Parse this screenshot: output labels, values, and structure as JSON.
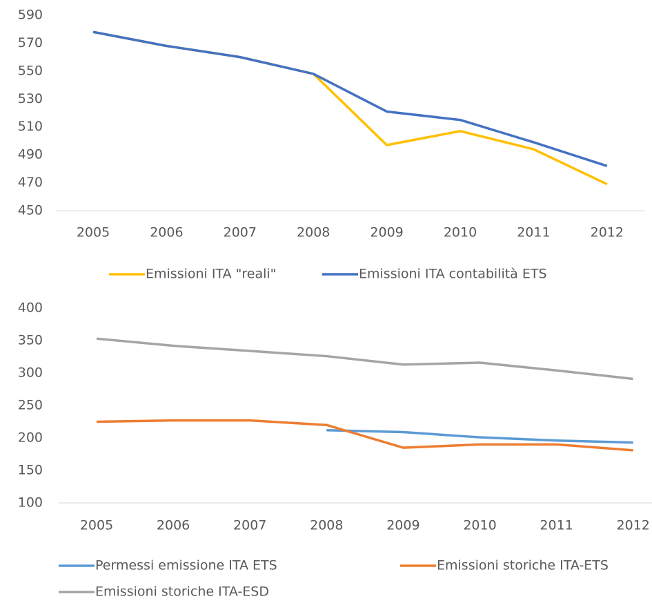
{
  "chart_data": [
    {
      "type": "line",
      "categories": [
        "2005",
        "2006",
        "2007",
        "2008",
        "2009",
        "2010",
        "2011",
        "2012"
      ],
      "series": [
        {
          "name": "Emissioni ITA \"reali\"",
          "color": "#ffc000",
          "values": [
            578,
            568,
            560,
            548,
            497,
            507,
            494,
            469
          ]
        },
        {
          "name": "Emissioni ITA contabilità ETS",
          "color": "#4472c4",
          "values": [
            578,
            568,
            560,
            548,
            521,
            515,
            499,
            482
          ]
        }
      ],
      "ylim": [
        450,
        590
      ],
      "yticks": [
        450,
        470,
        490,
        510,
        530,
        550,
        570,
        590
      ],
      "grid": false,
      "legend": "bottom"
    },
    {
      "type": "line",
      "categories": [
        "2005",
        "2006",
        "2007",
        "2008",
        "2009",
        "2010",
        "2011",
        "2012"
      ],
      "series": [
        {
          "name": "Permessi emissione ITA ETS",
          "color": "#5b9bd5",
          "values": [
            null,
            null,
            null,
            212,
            209,
            201,
            196,
            193
          ]
        },
        {
          "name": "Emissioni storiche ITA-ETS",
          "color": "#ed7d31",
          "values": [
            225,
            227,
            227,
            220,
            185,
            190,
            190,
            181
          ]
        },
        {
          "name": "Emissioni storiche ITA-ESD",
          "color": "#a5a5a5",
          "values": [
            353,
            342,
            334,
            326,
            313,
            316,
            304,
            291
          ]
        }
      ],
      "ylim": [
        100,
        400
      ],
      "yticks": [
        100,
        150,
        200,
        250,
        300,
        350,
        400
      ],
      "grid": false,
      "legend": "bottom"
    }
  ]
}
